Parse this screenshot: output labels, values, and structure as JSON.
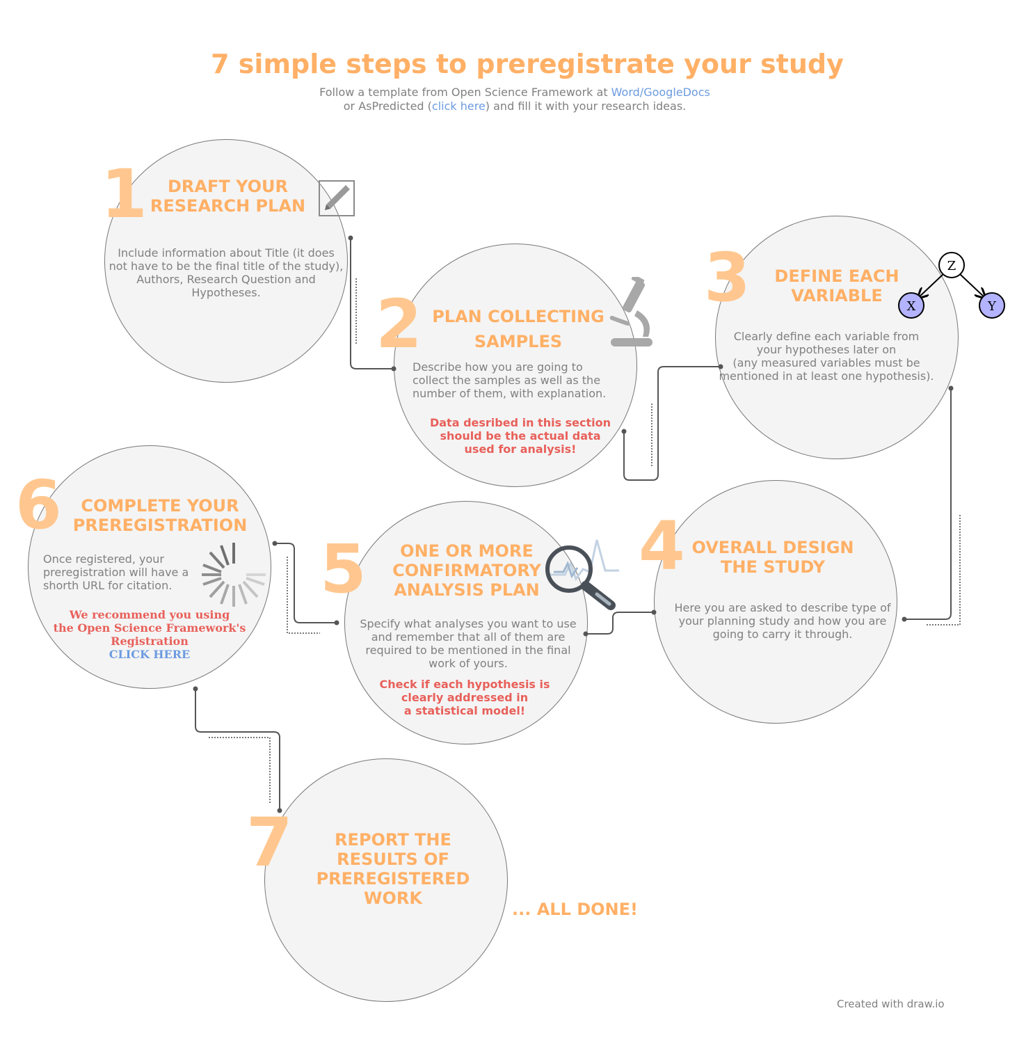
{
  "title": "7 simple steps to preregistrate your study",
  "subtitle": {
    "line1_prefix": "Follow a template from Open Science Framework at ",
    "line1_link": "Word/GoogleDocs",
    "line2_prefix": "or AsPredicted (",
    "line2_link": "click here",
    "line2_suffix": ") and fill it with your research ideas."
  },
  "steps": [
    {
      "number": "1",
      "heading_lines": [
        "DRAFT YOUR",
        "RESEARCH PLAN"
      ],
      "body": [
        "Include information about Title (it does",
        "not have to be the final title of the study),",
        "Authors, Research Question and",
        "Hypotheses."
      ],
      "icon": "pencil-icon"
    },
    {
      "number": "2",
      "heading_lines": [
        "PLAN COLLECTING",
        "SAMPLES"
      ],
      "body": [
        "Describe how you are going to",
        "collect the samples as well as the",
        "number of them, with explanation."
      ],
      "warning": [
        "Data desribed in this section",
        "should be the actual data",
        "used for analysis!"
      ],
      "icon": "microscope-icon"
    },
    {
      "number": "3",
      "heading_lines": [
        "DEFINE EACH",
        "VARIABLE"
      ],
      "body": [
        "Clearly define each variable from",
        "your hypotheses later on",
        "(any measured variables must be",
        "mentioned in at least one hypothesis)."
      ],
      "icon": "dag-icon",
      "dag_nodes": [
        "Z",
        "X",
        "Y"
      ]
    },
    {
      "number": "4",
      "heading_lines": [
        "OVERALL DESIGN",
        "THE STUDY"
      ],
      "body": [
        "Here you are asked to describe type of",
        "your planning study and how you are",
        "going to carry it through."
      ]
    },
    {
      "number": "5",
      "heading_lines": [
        "ONE OR MORE",
        "CONFIRMATORY",
        "ANALYSIS PLAN"
      ],
      "body": [
        "Specify what analyses you want to use",
        "and remember that all of them are",
        "required to be mentioned in the final",
        "work of yours."
      ],
      "warning": [
        "Check if each hypothesis is",
        "clearly addressed in",
        "a statistical model!"
      ],
      "icon": "magnifier-chart-icon"
    },
    {
      "number": "6",
      "heading_lines": [
        "COMPLETE YOUR",
        "PREREGISTRATION"
      ],
      "body": [
        "Once registered, your",
        "preregistration will have a",
        "shorth URL for citation."
      ],
      "warning": [
        "We recommend you using",
        "the Open Science Framework's",
        "Registration"
      ],
      "link": "CLICK HERE",
      "icon": "loading-spinner-icon"
    },
    {
      "number": "7",
      "heading_lines": [
        "REPORT THE",
        "RESULTS OF",
        "PREREGISTERED",
        "WORK"
      ]
    }
  ],
  "all_done": "... ALL DONE!",
  "footer": "Created with draw.io",
  "colors": {
    "accent": "#ffb066",
    "number": "#ffc78f",
    "warning": "#e8605a",
    "link": "#6c9be0",
    "circle_fill": "#f4f4f4",
    "dag_node": "#b3b3ff"
  }
}
